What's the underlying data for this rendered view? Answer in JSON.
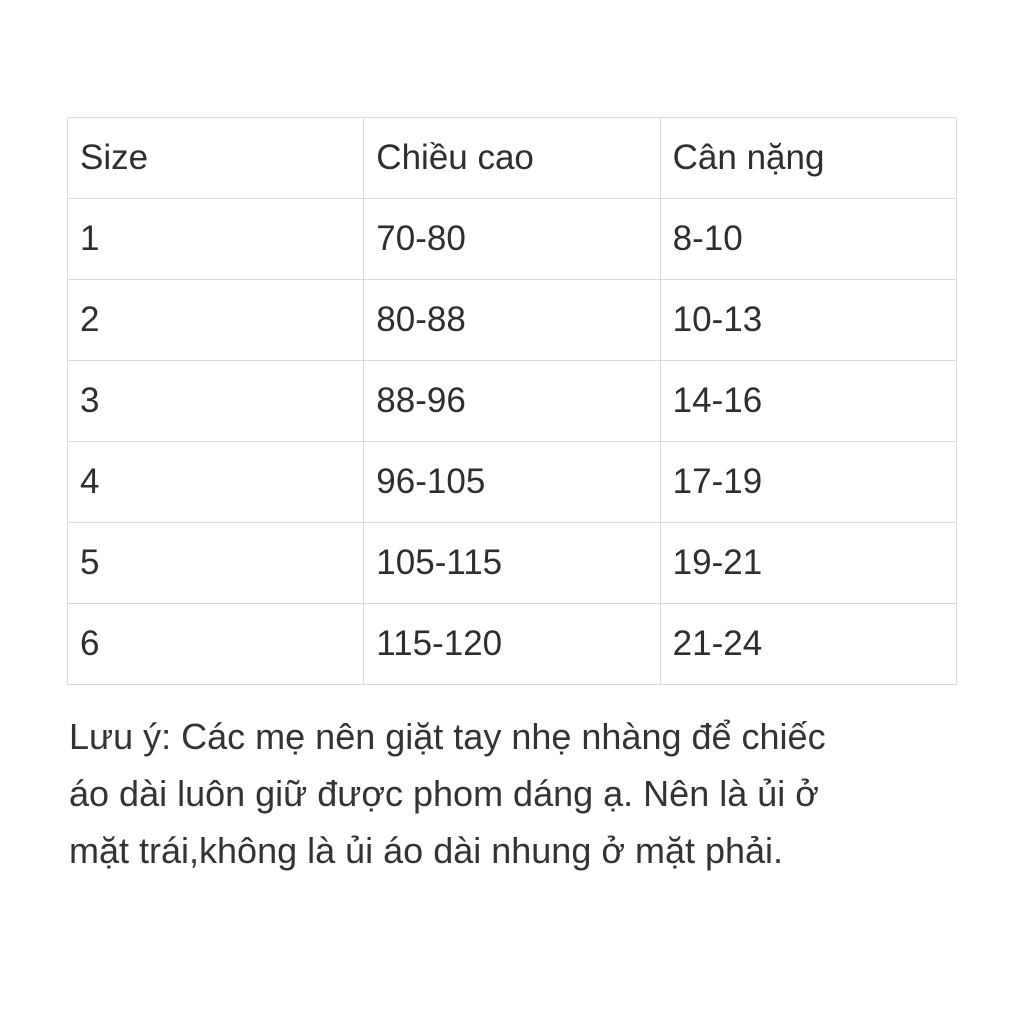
{
  "table": {
    "headers": [
      "Size",
      "Chiều cao",
      "Cân nặng"
    ],
    "rows": [
      [
        "1",
        "70-80",
        "8-10"
      ],
      [
        "2",
        "80-88",
        "10-13"
      ],
      [
        "3",
        "88-96",
        "14-16"
      ],
      [
        "4",
        "96-105",
        "17-19"
      ],
      [
        "5",
        "105-115",
        "19-21"
      ],
      [
        "6",
        "115-120",
        "21-24"
      ]
    ]
  },
  "note": {
    "lines": [
      "Lưu ý: Các mẹ nên giặt tay nhẹ nhàng để chiếc",
      "áo dài luôn giữ được phom dáng ạ. Nên là ủi ở",
      "mặt trái,không là ủi áo dài nhung ở mặt phải."
    ]
  }
}
